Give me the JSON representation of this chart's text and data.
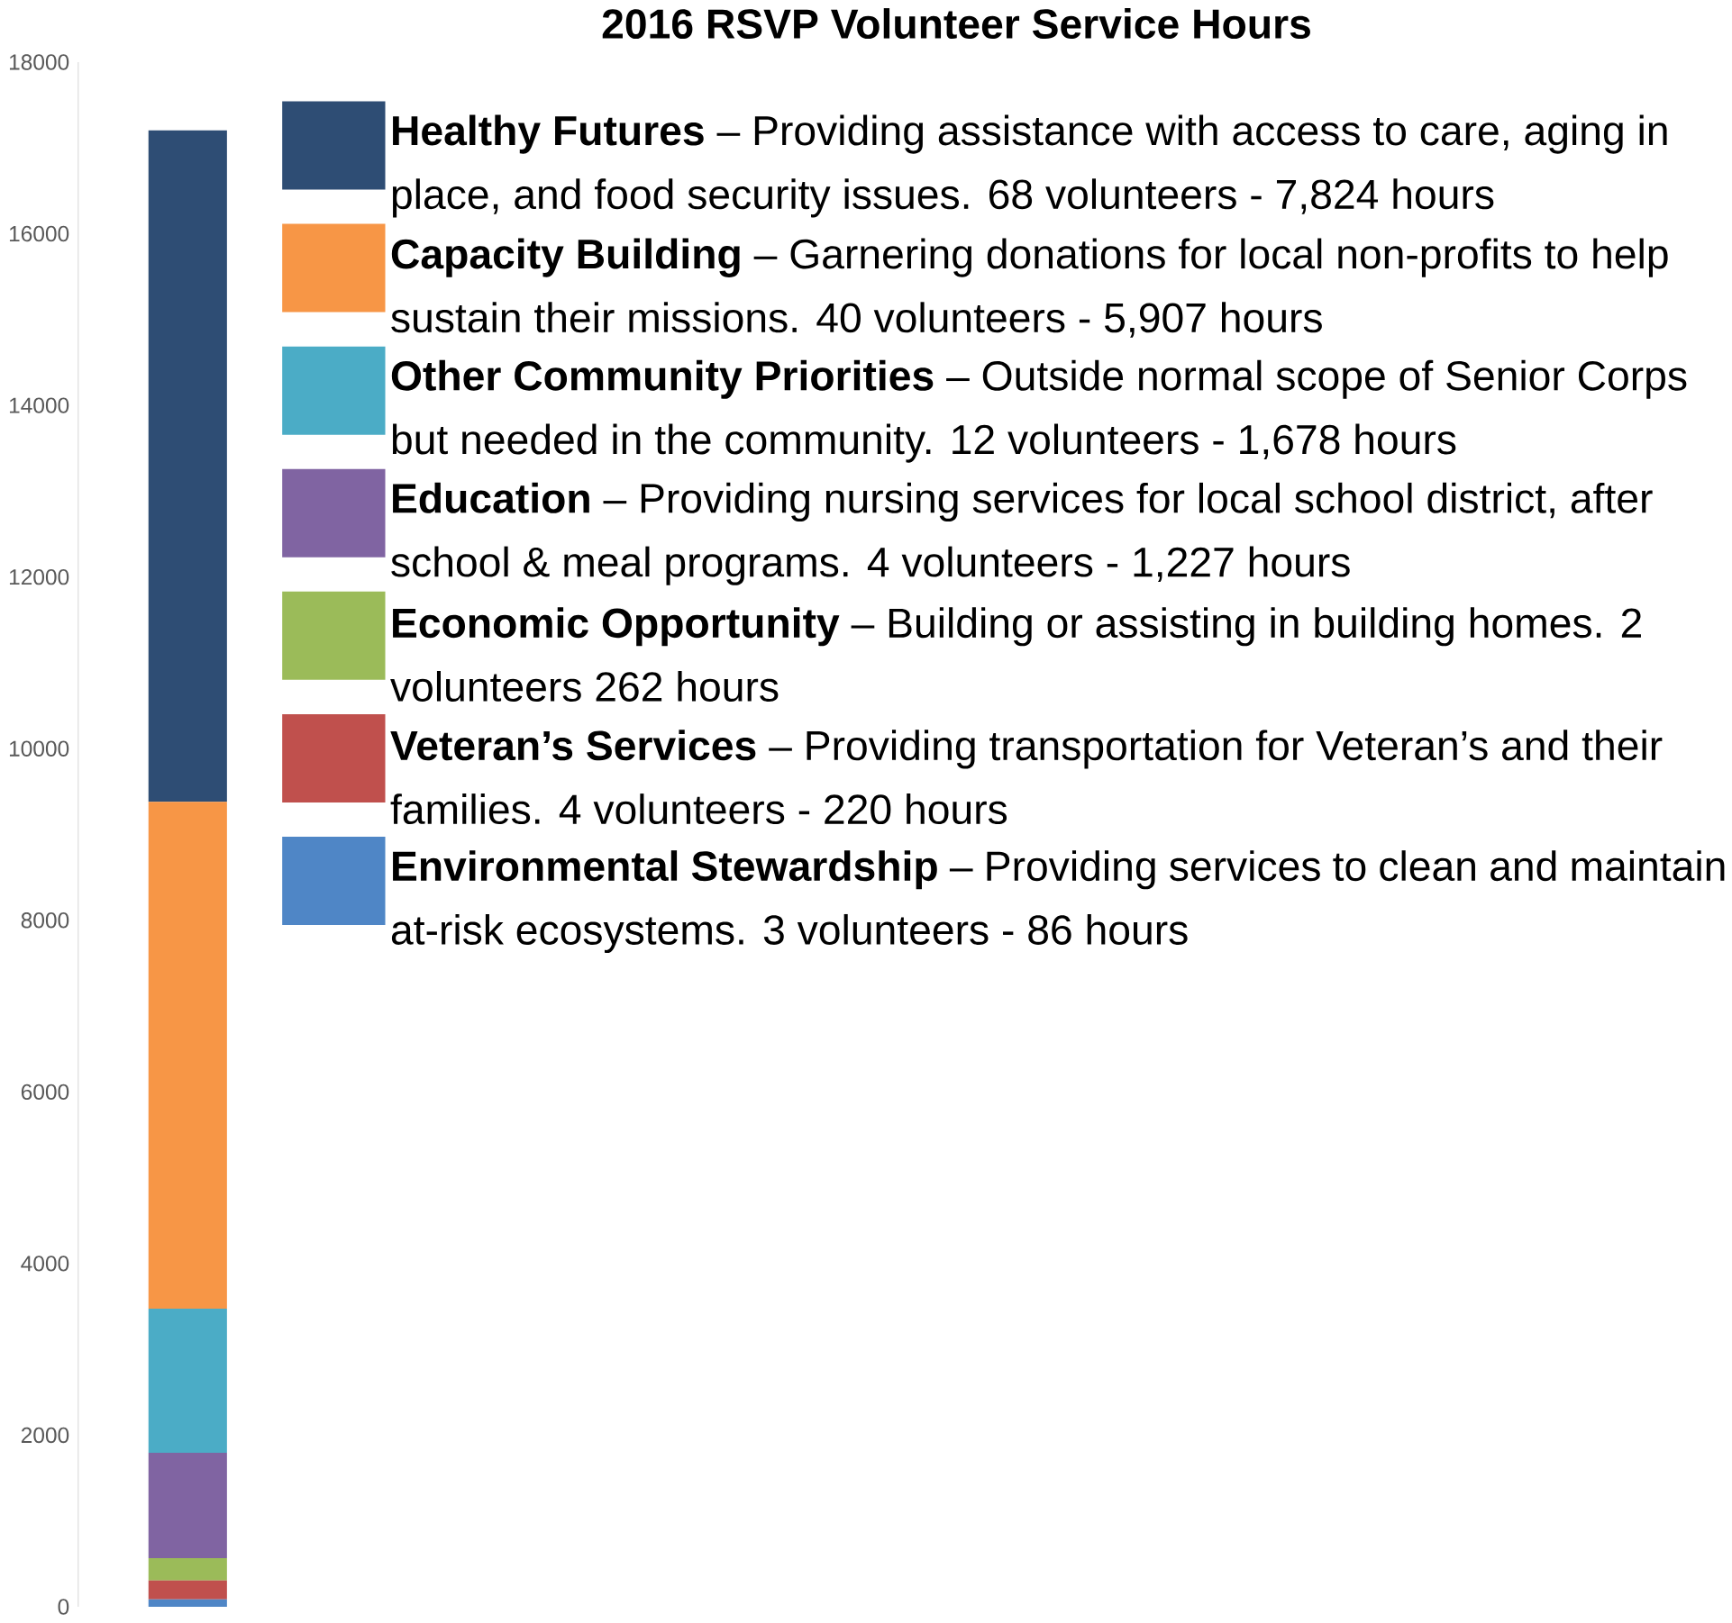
{
  "chart_data": {
    "type": "bar",
    "stacked": true,
    "title": "2016 RSVP Volunteer Service Hours",
    "categories": [
      null
    ],
    "ylim": [
      0,
      18000
    ],
    "yticks": [
      0,
      2000,
      4000,
      6000,
      8000,
      10000,
      12000,
      14000,
      16000,
      18000
    ],
    "tick_labels": "y",
    "grid": false,
    "legend": "right",
    "series": [
      {
        "name": "**Environmental Stewardship** – Providing services to clean and maintain at-risk ecosystems. 3 volunteers - 86 hours",
        "color": "#4f86c6",
        "values": [
          86
        ]
      },
      {
        "name": "**Veteran’s Services** – Providing transportation for Veteran’s and their families. 4 volunteers - 220 hours",
        "color": "#c0504d",
        "values": [
          220
        ]
      },
      {
        "name": "**Economic Opportunity** – Building or assisting in building homes. 2 volunteers 262 hours",
        "color": "#9bbb59",
        "values": [
          262
        ]
      },
      {
        "name": "**Education** – Providing nursing services for local school district, after school & meal programs. 4 volunteers - 1,227 hours",
        "color": "#8064a2",
        "values": [
          1227
        ]
      },
      {
        "name": "**Other Community Priorities** – Outside normal scope of Senior Corps but needed in the community. 12 volunteers - 1,678 hours",
        "color": "#4bacc6",
        "values": [
          1678
        ]
      },
      {
        "name": "**Capacity Building** – Garnering donations for local non-profits to help sustain their missions. 40 volunteers - 5,907 hours",
        "color": "#f79646",
        "values": [
          5907
        ]
      },
      {
        "name": "**Healthy Futures** – Providing assistance with access to care, aging in place, and food security issues. 68 volunteers - 7,824 hours",
        "color": "#2e4d74",
        "values": [
          7824
        ]
      }
    ]
  }
}
